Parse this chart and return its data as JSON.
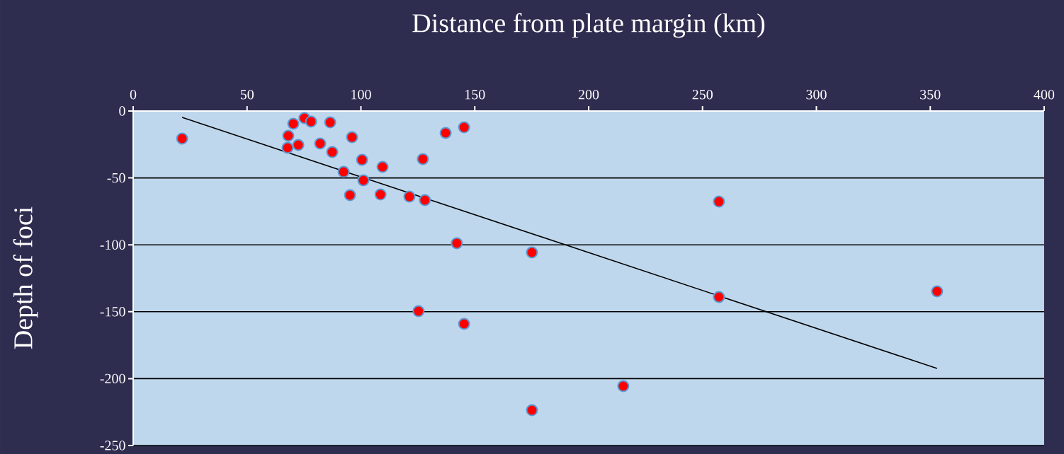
{
  "chart_data": {
    "type": "scatter",
    "xlabel": "Distance from plate margin (km)",
    "ylabel": "Depth of foci",
    "xlim": [
      0,
      400
    ],
    "ylim": [
      -250,
      0
    ],
    "xticks": [
      0,
      50,
      100,
      150,
      200,
      250,
      300,
      350,
      400
    ],
    "yticks": [
      -250,
      -200,
      -150,
      -100,
      -50,
      0
    ],
    "grid": "y",
    "marker": "circle",
    "legend": false,
    "series": [
      {
        "color": "#ff0000",
        "x": [
          21.5,
          67.8,
          68.1,
          70.3,
          75.2,
          78.1,
          72.5,
          82.1,
          86.5,
          87.4,
          96.1,
          92.4,
          95.2,
          100.5,
          101.1,
          107.3,
          108.6,
          109.5,
          121.3,
          128.1,
          127.2,
          137.2,
          145.3,
          142.1,
          125.3,
          145.3,
          175.1,
          257.2,
          257.2,
          353.0,
          215.2,
          175.1
        ],
        "values": [
          -20.6,
          -27.5,
          -18.5,
          -9.5,
          -5.3,
          -7.9,
          -25.4,
          -24.3,
          -8.5,
          -30.7,
          -19.6,
          -45.5,
          -62.9,
          -36.5,
          -51.8,
          null,
          -62.4,
          -41.8,
          -64.0,
          -66.6,
          -35.9,
          -16.4,
          -12.2,
          -98.8,
          -149.6,
          -159.1,
          -105.7,
          -67.7,
          -139.0,
          -134.8,
          -205.6,
          -223.6
        ]
      },
      {
        "type": "line",
        "color": "#000000",
        "marker": "none",
        "x": [
          21.5,
          353.0
        ],
        "values": [
          -4.8,
          -192.4
        ]
      }
    ]
  }
}
